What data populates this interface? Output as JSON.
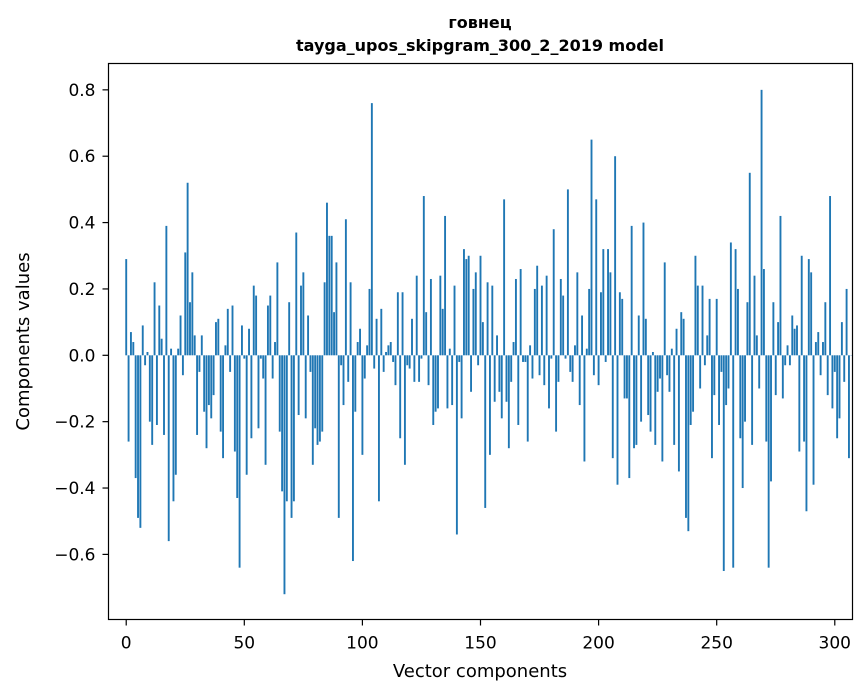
{
  "chart_data": {
    "type": "bar",
    "title_line1": "говнец",
    "title_line2": "tayga_upos_skipgram_300_2_2019 model",
    "xlabel": "Vector components",
    "ylabel": "Components values",
    "xlim": [
      -7.5,
      307.5
    ],
    "ylim": [
      -0.7962,
      0.8794
    ],
    "x_ticks": [
      0,
      50,
      100,
      150,
      200,
      250,
      300
    ],
    "x_tick_labels": [
      "0",
      "50",
      "100",
      "150",
      "200",
      "250",
      "300"
    ],
    "y_ticks": [
      -0.6,
      -0.4,
      -0.2,
      0.0,
      0.2,
      0.4,
      0.6,
      0.8
    ],
    "y_tick_labels": [
      "−0.6",
      "−0.4",
      "−0.2",
      "0.0",
      "0.2",
      "0.4",
      "0.6",
      "0.8"
    ],
    "bar_color": "#1f77b4",
    "bar_width": 0.8,
    "values": [
      0.29,
      -0.26,
      0.07,
      0.04,
      -0.37,
      -0.49,
      -0.52,
      0.09,
      -0.03,
      0.01,
      -0.2,
      -0.27,
      0.22,
      -0.21,
      0.15,
      0.05,
      -0.24,
      0.39,
      -0.56,
      0.02,
      -0.44,
      -0.36,
      0.02,
      0.12,
      -0.06,
      0.31,
      0.52,
      0.16,
      0.25,
      0.06,
      -0.24,
      -0.05,
      0.06,
      -0.17,
      -0.28,
      -0.15,
      -0.19,
      -0.12,
      0.1,
      0.11,
      -0.23,
      -0.31,
      0.03,
      0.14,
      -0.05,
      0.15,
      -0.29,
      -0.43,
      -0.64,
      0.09,
      -0.01,
      -0.36,
      0.08,
      -0.25,
      0.21,
      0.18,
      -0.22,
      -0.01,
      -0.07,
      -0.33,
      0.15,
      0.18,
      -0.07,
      0.04,
      0.28,
      -0.23,
      -0.41,
      -0.72,
      -0.44,
      0.16,
      -0.49,
      -0.44,
      0.37,
      -0.18,
      0.21,
      0.25,
      -0.19,
      0.12,
      -0.05,
      -0.33,
      -0.22,
      -0.27,
      -0.26,
      -0.23,
      0.22,
      0.46,
      0.36,
      0.36,
      0.13,
      0.28,
      -0.49,
      -0.03,
      -0.15,
      0.41,
      -0.08,
      0.22,
      -0.62,
      -0.17,
      0.04,
      0.08,
      -0.3,
      -0.07,
      0.03,
      0.2,
      0.76,
      -0.04,
      0.11,
      -0.44,
      0.14,
      -0.05,
      0.01,
      0.03,
      0.04,
      -0.02,
      -0.09,
      0.19,
      -0.25,
      0.19,
      -0.33,
      -0.03,
      -0.04,
      0.11,
      -0.08,
      0.24,
      -0.08,
      -0.01,
      0.48,
      0.13,
      -0.09,
      0.23,
      -0.21,
      -0.17,
      -0.16,
      0.24,
      0.14,
      0.42,
      -0.16,
      0.02,
      -0.15,
      0.21,
      -0.54,
      -0.02,
      -0.19,
      0.32,
      0.29,
      0.3,
      -0.11,
      0.2,
      0.25,
      -0.03,
      0.3,
      0.1,
      -0.46,
      0.22,
      -0.3,
      0.21,
      -0.14,
      0.06,
      -0.11,
      -0.19,
      0.47,
      -0.14,
      -0.28,
      -0.08,
      0.04,
      0.23,
      -0.21,
      0.26,
      -0.02,
      -0.02,
      -0.26,
      0.03,
      -0.07,
      0.2,
      0.27,
      -0.06,
      0.21,
      -0.09,
      0.24,
      -0.16,
      -0.01,
      0.38,
      -0.23,
      -0.08,
      0.23,
      0.18,
      -0.01,
      0.5,
      -0.05,
      -0.08,
      0.03,
      0.25,
      -0.15,
      0.12,
      -0.32,
      0.02,
      0.2,
      0.65,
      -0.06,
      0.47,
      -0.09,
      0.19,
      0.32,
      -0.02,
      0.32,
      0.25,
      -0.31,
      0.6,
      -0.39,
      0.19,
      0.17,
      -0.13,
      -0.13,
      -0.37,
      0.39,
      -0.28,
      -0.27,
      0.12,
      -0.2,
      0.4,
      0.11,
      -0.18,
      -0.23,
      0.01,
      -0.27,
      -0.11,
      -0.07,
      -0.32,
      0.28,
      -0.06,
      -0.11,
      0.02,
      -0.27,
      0.08,
      -0.35,
      0.13,
      0.11,
      -0.49,
      -0.53,
      -0.21,
      -0.17,
      0.3,
      0.21,
      -0.1,
      0.21,
      -0.03,
      0.06,
      0.17,
      -0.31,
      -0.12,
      0.17,
      -0.21,
      -0.05,
      -0.65,
      -0.15,
      -0.1,
      0.34,
      -0.64,
      0.32,
      0.2,
      -0.25,
      -0.4,
      -0.2,
      0.16,
      0.55,
      -0.27,
      0.24,
      0.06,
      -0.1,
      0.8,
      0.26,
      -0.26,
      -0.64,
      -0.38,
      0.16,
      -0.12,
      0.1,
      0.42,
      -0.13,
      -0.03,
      0.03,
      -0.03,
      0.12,
      0.08,
      0.09,
      -0.29,
      0.3,
      -0.26,
      -0.47,
      0.29,
      0.25,
      -0.39,
      0.04,
      0.07,
      -0.06,
      0.04,
      0.16,
      -0.12,
      0.48,
      -0.16,
      -0.05,
      -0.25,
      -0.19,
      0.1,
      -0.08,
      0.2,
      -0.31,
      0.0
    ]
  }
}
